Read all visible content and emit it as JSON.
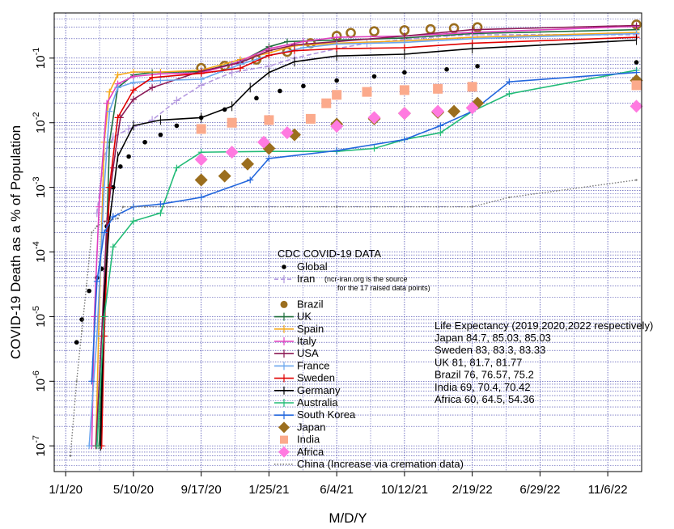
{
  "chart_data": {
    "type": "line",
    "xlabel": "M/D/Y",
    "ylabel": "COVID-19 Death as a % of Population",
    "y_scale": "log",
    "ylim": [
      4e-08,
      0.5
    ],
    "xlim": [
      "2019-12-10",
      "2023-01-10"
    ],
    "grid": true,
    "x_ticks": [
      "1/1/20",
      "5/10/20",
      "9/17/20",
      "1/25/21",
      "6/4/21",
      "10/12/21",
      "2/19/22",
      "6/29/22",
      "11/6/22"
    ],
    "y_ticks": [
      {
        "value": 1e-07,
        "base": "10",
        "exp": "-7"
      },
      {
        "value": 1e-06,
        "base": "10",
        "exp": "-6"
      },
      {
        "value": 1e-05,
        "base": "10",
        "exp": "-5"
      },
      {
        "value": 0.0001,
        "base": "10",
        "exp": "-4"
      },
      {
        "value": 0.001,
        "base": "10",
        "exp": "-3"
      },
      {
        "value": 0.01,
        "base": "10",
        "exp": "-2"
      },
      {
        "value": 0.1,
        "base": "10",
        "exp": "-1"
      }
    ],
    "legend": {
      "title": "CDC COVID-19 DATA",
      "position": "lower-center"
    },
    "series": [
      {
        "name": "Global",
        "color": "#000000",
        "marker": "dot",
        "points": [
          [
            "2020-01-22",
            4e-06
          ],
          [
            "2020-02-01",
            9e-06
          ],
          [
            "2020-02-15",
            2.5e-05
          ],
          [
            "2020-03-01",
            4e-05
          ],
          [
            "2020-03-10",
            5.5e-05
          ],
          [
            "2020-03-20",
            0.00025
          ],
          [
            "2020-04-01",
            0.001
          ],
          [
            "2020-04-15",
            0.0021
          ],
          [
            "2020-05-01",
            0.003
          ],
          [
            "2020-06-01",
            0.005
          ],
          [
            "2020-07-01",
            0.0065
          ],
          [
            "2020-08-01",
            0.009
          ],
          [
            "2020-09-17",
            0.012
          ],
          [
            "2020-11-01",
            0.016
          ],
          [
            "2021-01-01",
            0.024
          ],
          [
            "2021-02-15",
            0.031
          ],
          [
            "2021-04-01",
            0.037
          ],
          [
            "2021-06-04",
            0.045
          ],
          [
            "2021-08-15",
            0.052
          ],
          [
            "2021-10-12",
            0.06
          ],
          [
            "2022-01-01",
            0.067
          ],
          [
            "2022-03-01",
            0.075
          ],
          [
            "2022-12-31",
            0.086
          ]
        ]
      },
      {
        "name": "Iran",
        "color": "#b499e0",
        "marker": "dash",
        "note": "(ncr-iran.org is the source for the 17 raised data points)",
        "points": [
          [
            "2020-03-01",
            0.0004
          ],
          [
            "2020-03-15",
            0.003
          ],
          [
            "2020-04-01",
            0.006
          ],
          [
            "2020-05-01",
            0.008
          ],
          [
            "2020-06-15",
            0.011
          ],
          [
            "2020-08-01",
            0.022
          ],
          [
            "2020-09-17",
            0.038
          ],
          [
            "2020-11-15",
            0.06
          ],
          [
            "2021-01-25",
            0.075
          ],
          [
            "2021-03-15",
            0.1
          ],
          [
            "2021-06-04",
            0.14
          ],
          [
            "2021-08-01",
            0.17
          ],
          [
            "2021-10-12",
            0.195
          ],
          [
            "2022-01-01",
            0.22
          ],
          [
            "2022-03-01",
            0.23
          ],
          [
            "2022-12-31",
            0.23
          ]
        ]
      },
      {
        "name": "Brazil",
        "color": "#9b6e1e",
        "marker": "ring",
        "points": [
          [
            "2020-09-17",
            0.07
          ],
          [
            "2020-11-01",
            0.076
          ],
          [
            "2021-01-01",
            0.095
          ],
          [
            "2021-03-01",
            0.125
          ],
          [
            "2021-04-15",
            0.17
          ],
          [
            "2021-06-04",
            0.22
          ],
          [
            "2021-07-01",
            0.245
          ],
          [
            "2021-08-15",
            0.26
          ],
          [
            "2021-10-12",
            0.27
          ],
          [
            "2021-12-01",
            0.28
          ],
          [
            "2022-01-15",
            0.29
          ],
          [
            "2022-03-01",
            0.3
          ],
          [
            "2022-12-31",
            0.33
          ]
        ]
      },
      {
        "name": "UK",
        "color": "#1e6e3c",
        "marker": "plus",
        "points": [
          [
            "2020-03-05",
            1e-07
          ],
          [
            "2020-03-15",
            1e-05
          ],
          [
            "2020-03-25",
            0.005
          ],
          [
            "2020-04-10",
            0.035
          ],
          [
            "2020-05-10",
            0.055
          ],
          [
            "2020-06-15",
            0.06
          ],
          [
            "2020-09-17",
            0.062
          ],
          [
            "2020-12-01",
            0.088
          ],
          [
            "2021-01-25",
            0.15
          ],
          [
            "2021-03-01",
            0.18
          ],
          [
            "2021-06-04",
            0.19
          ],
          [
            "2021-10-12",
            0.205
          ],
          [
            "2022-02-19",
            0.24
          ],
          [
            "2022-12-31",
            0.275
          ]
        ]
      },
      {
        "name": "Spain",
        "color": "#f5a81a",
        "marker": "plus",
        "points": [
          [
            "2020-02-28",
            1e-07
          ],
          [
            "2020-03-05",
            1e-05
          ],
          [
            "2020-03-15",
            0.005
          ],
          [
            "2020-03-25",
            0.03
          ],
          [
            "2020-04-10",
            0.055
          ],
          [
            "2020-05-10",
            0.061
          ],
          [
            "2020-07-01",
            0.061
          ],
          [
            "2020-09-17",
            0.065
          ],
          [
            "2020-12-01",
            0.095
          ],
          [
            "2021-01-25",
            0.12
          ],
          [
            "2021-03-15",
            0.155
          ],
          [
            "2021-06-04",
            0.17
          ],
          [
            "2021-10-12",
            0.185
          ],
          [
            "2022-02-19",
            0.21
          ],
          [
            "2022-12-31",
            0.25
          ]
        ]
      },
      {
        "name": "Italy",
        "color": "#e040c0",
        "marker": "plus",
        "points": [
          [
            "2020-02-20",
            1e-07
          ],
          [
            "2020-02-25",
            1e-05
          ],
          [
            "2020-03-05",
            0.0005
          ],
          [
            "2020-03-20",
            0.02
          ],
          [
            "2020-04-10",
            0.04
          ],
          [
            "2020-05-10",
            0.052
          ],
          [
            "2020-07-01",
            0.057
          ],
          [
            "2020-09-17",
            0.059
          ],
          [
            "2020-11-15",
            0.08
          ],
          [
            "2021-01-25",
            0.14
          ],
          [
            "2021-04-01",
            0.18
          ],
          [
            "2021-06-04",
            0.21
          ],
          [
            "2021-10-12",
            0.22
          ],
          [
            "2022-02-19",
            0.25
          ],
          [
            "2022-12-31",
            0.31
          ]
        ]
      },
      {
        "name": "USA",
        "color": "#8b1a55",
        "marker": "plus",
        "points": [
          [
            "2020-02-28",
            1e-07
          ],
          [
            "2020-03-10",
            5e-06
          ],
          [
            "2020-03-20",
            0.0003
          ],
          [
            "2020-04-01",
            0.002
          ],
          [
            "2020-04-15",
            0.012
          ],
          [
            "2020-05-10",
            0.023
          ],
          [
            "2020-06-15",
            0.035
          ],
          [
            "2020-09-17",
            0.063
          ],
          [
            "2020-12-01",
            0.085
          ],
          [
            "2021-01-25",
            0.13
          ],
          [
            "2021-03-15",
            0.16
          ],
          [
            "2021-06-04",
            0.18
          ],
          [
            "2021-10-12",
            0.22
          ],
          [
            "2022-02-19",
            0.275
          ],
          [
            "2022-12-31",
            0.32
          ]
        ]
      },
      {
        "name": "France",
        "color": "#6aa6ee",
        "marker": "plus",
        "points": [
          [
            "2020-02-15",
            1e-07
          ],
          [
            "2020-03-01",
            5e-06
          ],
          [
            "2020-03-15",
            0.001
          ],
          [
            "2020-03-25",
            0.015
          ],
          [
            "2020-04-10",
            0.035
          ],
          [
            "2020-05-10",
            0.042
          ],
          [
            "2020-07-01",
            0.045
          ],
          [
            "2020-09-17",
            0.047
          ],
          [
            "2020-12-01",
            0.08
          ],
          [
            "2021-01-25",
            0.11
          ],
          [
            "2021-04-01",
            0.145
          ],
          [
            "2021-06-04",
            0.165
          ],
          [
            "2021-10-12",
            0.175
          ],
          [
            "2022-02-19",
            0.2
          ],
          [
            "2022-12-31",
            0.24
          ]
        ]
      },
      {
        "name": "Sweden",
        "color": "#e00000",
        "marker": "plus",
        "points": [
          [
            "2020-03-10",
            1e-07
          ],
          [
            "2020-03-15",
            5e-06
          ],
          [
            "2020-03-25",
            0.001
          ],
          [
            "2020-04-10",
            0.012
          ],
          [
            "2020-05-10",
            0.032
          ],
          [
            "2020-06-15",
            0.05
          ],
          [
            "2020-09-17",
            0.058
          ],
          [
            "2020-12-01",
            0.07
          ],
          [
            "2021-01-25",
            0.11
          ],
          [
            "2021-03-15",
            0.13
          ],
          [
            "2021-06-04",
            0.14
          ],
          [
            "2021-10-12",
            0.145
          ],
          [
            "2022-02-19",
            0.17
          ],
          [
            "2022-12-31",
            0.21
          ]
        ]
      },
      {
        "name": "Germany",
        "color": "#000000",
        "marker": "tick",
        "points": [
          [
            "2020-03-08",
            1e-07
          ],
          [
            "2020-03-15",
            2e-05
          ],
          [
            "2020-03-25",
            0.0003
          ],
          [
            "2020-04-10",
            0.003
          ],
          [
            "2020-05-10",
            0.009
          ],
          [
            "2020-07-01",
            0.011
          ],
          [
            "2020-09-17",
            0.012
          ],
          [
            "2020-11-15",
            0.018
          ],
          [
            "2020-12-20",
            0.035
          ],
          [
            "2021-01-25",
            0.06
          ],
          [
            "2021-03-15",
            0.088
          ],
          [
            "2021-06-04",
            0.108
          ],
          [
            "2021-10-12",
            0.115
          ],
          [
            "2022-02-19",
            0.14
          ],
          [
            "2022-12-31",
            0.19
          ]
        ]
      },
      {
        "name": "Australia",
        "color": "#22bb77",
        "marker": "plus",
        "points": [
          [
            "2020-03-01",
            1e-07
          ],
          [
            "2020-03-15",
            1e-05
          ],
          [
            "2020-04-01",
            0.00012
          ],
          [
            "2020-05-10",
            0.0003
          ],
          [
            "2020-07-01",
            0.0004
          ],
          [
            "2020-08-01",
            0.002
          ],
          [
            "2020-09-17",
            0.0035
          ],
          [
            "2021-01-25",
            0.0036
          ],
          [
            "2021-06-04",
            0.0036
          ],
          [
            "2021-08-15",
            0.004
          ],
          [
            "2021-10-12",
            0.0055
          ],
          [
            "2021-12-20",
            0.007
          ],
          [
            "2022-02-19",
            0.015
          ],
          [
            "2022-05-01",
            0.028
          ],
          [
            "2022-12-31",
            0.065
          ]
        ]
      },
      {
        "name": "South Korea",
        "color": "#2266dd",
        "marker": "plus",
        "points": [
          [
            "2020-02-20",
            1e-06
          ],
          [
            "2020-03-01",
            3.5e-05
          ],
          [
            "2020-03-15",
            0.0002
          ],
          [
            "2020-04-01",
            0.00035
          ],
          [
            "2020-05-10",
            0.0005
          ],
          [
            "2020-07-01",
            0.00055
          ],
          [
            "2020-09-17",
            0.0007
          ],
          [
            "2020-12-20",
            0.0013
          ],
          [
            "2021-01-25",
            0.0028
          ],
          [
            "2021-06-04",
            0.0037
          ],
          [
            "2021-10-12",
            0.0055
          ],
          [
            "2021-12-20",
            0.009
          ],
          [
            "2022-02-19",
            0.015
          ],
          [
            "2022-05-01",
            0.043
          ],
          [
            "2022-12-31",
            0.06
          ]
        ]
      },
      {
        "name": "Japan",
        "color": "#9b6e1e",
        "marker": "diamond",
        "points": [
          [
            "2020-09-17",
            0.0013
          ],
          [
            "2020-11-01",
            0.0015
          ],
          [
            "2020-12-15",
            0.0023
          ],
          [
            "2021-01-25",
            0.004
          ],
          [
            "2021-03-15",
            0.0065
          ],
          [
            "2021-06-04",
            0.0095
          ],
          [
            "2021-08-15",
            0.0115
          ],
          [
            "2021-10-12",
            0.014
          ],
          [
            "2021-12-15",
            0.0145
          ],
          [
            "2022-01-15",
            0.015
          ],
          [
            "2022-03-01",
            0.02
          ],
          [
            "2022-12-31",
            0.045
          ]
        ]
      },
      {
        "name": "India",
        "color": "#fbaa8c",
        "marker": "square",
        "points": [
          [
            "2020-09-17",
            0.008
          ],
          [
            "2020-11-15",
            0.01
          ],
          [
            "2021-01-25",
            0.011
          ],
          [
            "2021-04-15",
            0.0115
          ],
          [
            "2021-05-15",
            0.02
          ],
          [
            "2021-06-04",
            0.027
          ],
          [
            "2021-08-01",
            0.03
          ],
          [
            "2021-10-12",
            0.032
          ],
          [
            "2021-12-15",
            0.0335
          ],
          [
            "2022-02-19",
            0.036
          ],
          [
            "2022-12-31",
            0.038
          ]
        ]
      },
      {
        "name": "Africa",
        "color": "#ff7ae0",
        "marker": "diamond",
        "points": [
          [
            "2020-09-17",
            0.0027
          ],
          [
            "2020-11-15",
            0.0035
          ],
          [
            "2021-01-15",
            0.005
          ],
          [
            "2021-03-01",
            0.007
          ],
          [
            "2021-06-04",
            0.0088
          ],
          [
            "2021-08-15",
            0.012
          ],
          [
            "2021-10-12",
            0.014
          ],
          [
            "2021-12-15",
            0.015
          ],
          [
            "2022-02-19",
            0.017
          ],
          [
            "2022-12-31",
            0.018
          ]
        ]
      },
      {
        "name": "China (Increase via cremation data)",
        "color": "#777777",
        "marker": "dotline",
        "points": [
          [
            "2020-01-10",
            7e-08
          ],
          [
            "2020-01-22",
            1e-06
          ],
          [
            "2020-02-01",
            6e-06
          ],
          [
            "2020-02-10",
            3e-05
          ],
          [
            "2020-02-20",
            0.0002
          ],
          [
            "2020-03-01",
            0.00025
          ],
          [
            "2020-03-20",
            0.0003
          ],
          [
            "2020-04-10",
            0.00033
          ],
          [
            "2020-04-20",
            0.0005
          ],
          [
            "2020-06-01",
            0.0005
          ],
          [
            "2021-06-04",
            0.0005
          ],
          [
            "2022-02-19",
            0.0005
          ],
          [
            "2022-05-01",
            0.0007
          ],
          [
            "2022-12-31",
            0.0013
          ]
        ]
      }
    ],
    "annotation": {
      "heading": "Life Expectancy (2019,2020,2022 respectively)",
      "lines": [
        "Japan 84.7, 85.03, 85.03",
        "Sweden 83, 83.3, 83.33",
        "UK 81, 81.7, 81.77",
        "Brazil 76, 76.57, 75.2",
        "India 69, 70.4, 70.42",
        "Africa 60, 64.5, 54.36"
      ]
    }
  }
}
